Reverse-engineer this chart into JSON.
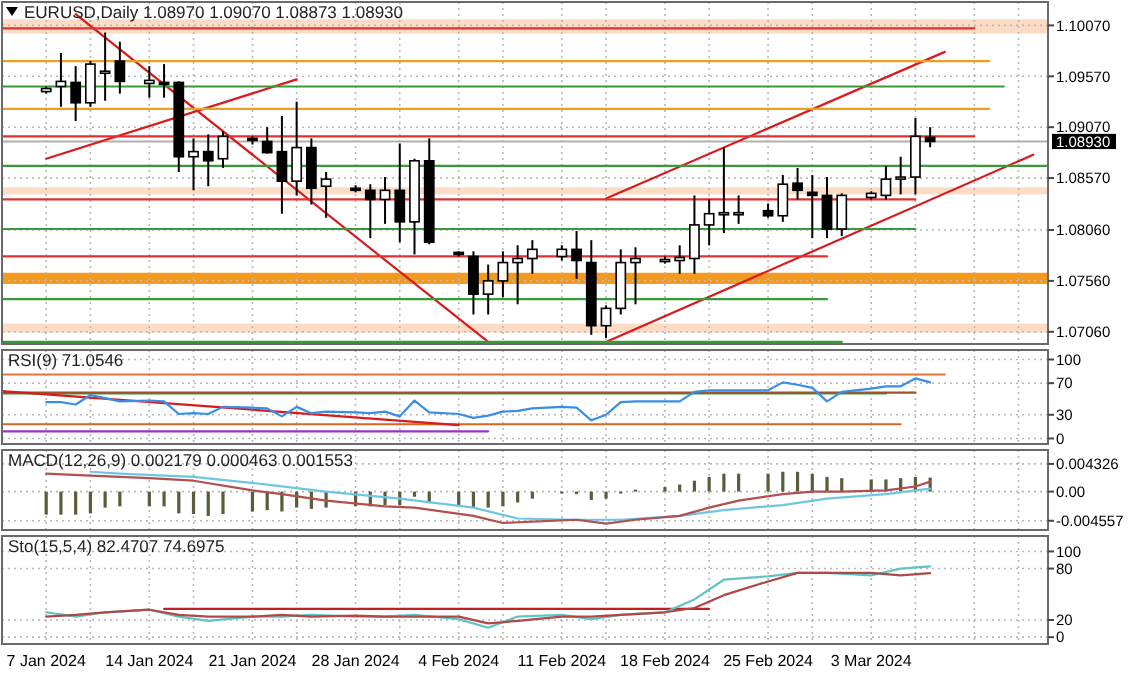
{
  "chart_data": [
    {
      "type": "candlestick",
      "title": "EURUSD,Daily  1.08970 1.09070 1.08873 1.08930",
      "x": [
        "2024-01-07",
        "2024-01-08",
        "2024-01-09",
        "2024-01-10",
        "2024-01-11",
        "2024-01-12",
        "2024-01-14",
        "2024-01-15",
        "2024-01-16",
        "2024-01-17",
        "2024-01-18",
        "2024-01-19",
        "2024-01-21",
        "2024-01-22",
        "2024-01-23",
        "2024-01-24",
        "2024-01-25",
        "2024-01-26",
        "2024-01-28",
        "2024-01-29",
        "2024-01-30",
        "2024-01-31",
        "2024-02-01",
        "2024-02-02",
        "2024-02-04",
        "2024-02-05",
        "2024-02-06",
        "2024-02-07",
        "2024-02-08",
        "2024-02-09",
        "2024-02-11",
        "2024-02-12",
        "2024-02-13",
        "2024-02-14",
        "2024-02-15",
        "2024-02-16",
        "2024-02-18",
        "2024-02-19",
        "2024-02-20",
        "2024-02-21",
        "2024-02-22",
        "2024-02-23",
        "2024-02-25",
        "2024-02-26",
        "2024-02-27",
        "2024-02-28",
        "2024-02-29",
        "2024-03-01",
        "2024-03-03",
        "2024-03-04",
        "2024-03-05",
        "2024-03-06",
        "2024-03-07"
      ],
      "ohlc": [
        [
          1.0942,
          1.0947,
          1.094,
          1.0945
        ],
        [
          1.0947,
          1.098,
          1.0927,
          1.0952
        ],
        [
          1.0951,
          1.0967,
          1.0913,
          1.0931
        ],
        [
          1.0931,
          1.0972,
          1.0927,
          1.0969
        ],
        [
          1.096,
          1.1,
          1.0933,
          1.0962
        ],
        [
          1.0972,
          1.0991,
          1.094,
          1.0952
        ],
        [
          1.095,
          1.0967,
          1.0936,
          1.0953
        ],
        [
          1.0951,
          1.0969,
          1.0936,
          1.095
        ],
        [
          1.0951,
          1.0952,
          1.0863,
          1.0878
        ],
        [
          1.0878,
          1.0896,
          1.0845,
          1.0883
        ],
        [
          1.0883,
          1.09,
          1.0849,
          1.0874
        ],
        [
          1.0876,
          1.0903,
          1.0867,
          1.0898
        ],
        [
          1.0896,
          1.0898,
          1.089,
          1.0894
        ],
        [
          1.0893,
          1.0907,
          1.0881,
          1.0882
        ],
        [
          1.0883,
          1.0918,
          1.0822,
          1.0854
        ],
        [
          1.0854,
          1.0932,
          1.084,
          1.0887
        ],
        [
          1.0887,
          1.0896,
          1.0831,
          1.0847
        ],
        [
          1.0849,
          1.0863,
          1.0818,
          1.0856
        ],
        [
          1.0847,
          1.085,
          1.0843,
          1.0845
        ],
        [
          1.0845,
          1.0851,
          1.0798,
          1.0836
        ],
        [
          1.0836,
          1.0858,
          1.0812,
          1.0845
        ],
        [
          1.0845,
          1.0891,
          1.0794,
          1.0814
        ],
        [
          1.0814,
          1.0876,
          1.0782,
          1.0874
        ],
        [
          1.0874,
          1.0896,
          1.0792,
          1.0794
        ],
        [
          1.0784,
          1.0785,
          1.078,
          1.0782
        ],
        [
          1.078,
          1.0785,
          1.0723,
          1.0743
        ],
        [
          1.0743,
          1.0772,
          1.0723,
          1.0756
        ],
        [
          1.0756,
          1.0785,
          1.074,
          1.0774
        ],
        [
          1.0774,
          1.0791,
          1.0733,
          1.0778
        ],
        [
          1.0778,
          1.0796,
          1.0763,
          1.0787
        ],
        [
          1.078,
          1.0791,
          1.0776,
          1.0787
        ],
        [
          1.0787,
          1.0805,
          1.0758,
          1.0776
        ],
        [
          1.0774,
          1.0796,
          1.0703,
          1.0712
        ],
        [
          1.0712,
          1.0732,
          1.07,
          1.0729
        ],
        [
          1.0729,
          1.0787,
          1.0723,
          1.0774
        ],
        [
          1.0774,
          1.0789,
          1.0733,
          1.0778
        ],
        [
          1.0775,
          1.078,
          1.0773,
          1.0777
        ],
        [
          1.0776,
          1.0791,
          1.0763,
          1.0779
        ],
        [
          1.0778,
          1.084,
          1.0763,
          1.0811
        ],
        [
          1.0811,
          1.0836,
          1.0791,
          1.0822
        ],
        [
          1.0821,
          1.0887,
          1.0803,
          1.0823
        ],
        [
          1.0821,
          1.084,
          1.0812,
          1.0823
        ],
        [
          1.0825,
          1.0832,
          1.0818,
          1.082
        ],
        [
          1.082,
          1.086,
          1.0814,
          1.0851
        ],
        [
          1.0852,
          1.0867,
          1.0836,
          1.0845
        ],
        [
          1.0843,
          1.086,
          1.0798,
          1.084
        ],
        [
          1.084,
          1.0858,
          1.0798,
          1.0807
        ],
        [
          1.0807,
          1.0842,
          1.08,
          1.084
        ],
        [
          1.0838,
          1.0844,
          1.0836,
          1.0842
        ],
        [
          1.084,
          1.0869,
          1.0836,
          1.0856
        ],
        [
          1.0856,
          1.0878,
          1.0841,
          1.0858
        ],
        [
          1.0858,
          1.0916,
          1.0841,
          1.0898
        ],
        [
          1.0897,
          1.0907,
          1.08873,
          1.0893
        ]
      ],
      "series": [
        {
          "type": "line",
          "color": "#d81c1c",
          "x": [
            "2024-01-09",
            "2024-02-06"
          ],
          "values": [
            1.1018,
            1.0696
          ]
        },
        {
          "type": "line",
          "color": "#d81c1c",
          "x": [
            "2024-01-07",
            "2024-01-24"
          ],
          "values": [
            1.0876,
            1.0954
          ]
        },
        {
          "type": "line",
          "color": "#d81c1c",
          "x": [
            "2024-02-14",
            "2024-03-08"
          ],
          "values": [
            1.0837,
            1.0981
          ]
        },
        {
          "type": "line",
          "color": "#d81c1c",
          "x": [
            "2024-02-14",
            "2024-03-14"
          ],
          "values": [
            1.0696,
            1.088
          ]
        },
        {
          "type": "line",
          "color": "#e03030",
          "x": [
            "2024-01-04",
            "2024-03-10"
          ],
          "values": [
            1.1004,
            1.1004
          ]
        },
        {
          "type": "line",
          "color": "#f0a020",
          "x": [
            "2024-01-04",
            "2024-03-11"
          ],
          "values": [
            1.0972,
            1.0972
          ]
        },
        {
          "type": "line",
          "color": "#3a9a3a",
          "x": [
            "2024-01-04",
            "2024-03-12"
          ],
          "values": [
            1.0947,
            1.0947
          ]
        },
        {
          "type": "line",
          "color": "#f0a020",
          "x": [
            "2024-01-04",
            "2024-03-11"
          ],
          "values": [
            1.0925,
            1.0925
          ]
        },
        {
          "type": "line",
          "color": "#e03030",
          "x": [
            "2024-01-04",
            "2024-03-10"
          ],
          "values": [
            1.0898,
            1.0898
          ]
        },
        {
          "type": "line",
          "color": "#3a9a3a",
          "x": [
            "2024-01-04",
            "2024-03-15"
          ],
          "values": [
            1.0869,
            1.0869
          ]
        },
        {
          "type": "line",
          "color": "#e03030",
          "x": [
            "2024-01-04",
            "2024-03-06"
          ],
          "values": [
            1.0836,
            1.0836
          ]
        },
        {
          "type": "line",
          "color": "#3a9a3a",
          "x": [
            "2024-01-04",
            "2024-03-06"
          ],
          "values": [
            1.0807,
            1.0807
          ]
        },
        {
          "type": "line",
          "color": "#e03030",
          "x": [
            "2024-01-04",
            "2024-02-29"
          ],
          "values": [
            1.078,
            1.078
          ]
        },
        {
          "type": "line",
          "color": "#3a9a3a",
          "x": [
            "2024-01-04",
            "2024-02-29"
          ],
          "values": [
            1.0738,
            1.0738
          ]
        },
        {
          "type": "line",
          "color": "#3a9a3a",
          "x": [
            "2024-01-04",
            "2024-03-01"
          ],
          "values": [
            1.0696,
            1.0696
          ]
        }
      ],
      "bands": [
        {
          "axis": "y",
          "from": 1.0999,
          "to": 1.1013,
          "color": "#fcdcc4"
        },
        {
          "axis": "y",
          "from": 1.0841,
          "to": 1.0848,
          "color": "#fcdcc4"
        },
        {
          "axis": "y",
          "from": 1.0753,
          "to": 1.0764,
          "color": "#f39a1e"
        },
        {
          "axis": "y",
          "from": 1.0705,
          "to": 1.0714,
          "color": "#fcdcc4"
        }
      ],
      "ref_lines": [
        {
          "axis": "y",
          "value": 1.0893,
          "label": "1.08930",
          "color": "#b0b0b0"
        }
      ],
      "xlim": [
        "2024-01-04",
        "2024-03-15"
      ],
      "ylim": [
        1.0694,
        1.103
      ],
      "yticks": [
        {
          "value": 1.1007,
          "label": "1.10070"
        },
        {
          "value": 1.0957,
          "label": "1.09570"
        },
        {
          "value": 1.0907,
          "label": "1.09070"
        },
        {
          "value": 1.0857,
          "label": "1.08570"
        },
        {
          "value": 1.0806,
          "label": "1.08060"
        },
        {
          "value": 1.0756,
          "label": "1.07560"
        },
        {
          "value": 1.0706,
          "label": "1.07060"
        }
      ],
      "xticks": [
        {
          "value": "2024-01-07",
          "label": null
        },
        {
          "value": "2024-01-10",
          "label": null
        },
        {
          "value": "2024-01-14",
          "label": null
        },
        {
          "value": "2024-01-17",
          "label": null
        },
        {
          "value": "2024-01-21",
          "label": null
        },
        {
          "value": "2024-01-24",
          "label": null
        },
        {
          "value": "2024-01-28",
          "label": null
        },
        {
          "value": "2024-01-31",
          "label": null
        },
        {
          "value": "2024-02-04",
          "label": null
        },
        {
          "value": "2024-02-07",
          "label": null
        },
        {
          "value": "2024-02-11",
          "label": null
        },
        {
          "value": "2024-02-14",
          "label": null
        },
        {
          "value": "2024-02-18",
          "label": null
        },
        {
          "value": "2024-02-21",
          "label": null
        },
        {
          "value": "2024-02-25",
          "label": null
        },
        {
          "value": "2024-02-28",
          "label": null
        },
        {
          "value": "2024-03-03",
          "label": null
        },
        {
          "value": "2024-03-06",
          "label": null
        },
        {
          "value": "2024-03-10",
          "label": null
        },
        {
          "value": "2024-03-13",
          "label": null
        }
      ],
      "tick_labels": "y",
      "grid": true
    },
    {
      "type": "line",
      "title": "RSI(9) 71.0546",
      "x": [
        "2024-01-07",
        "2024-01-08",
        "2024-01-09",
        "2024-01-10",
        "2024-01-11",
        "2024-01-12",
        "2024-01-14",
        "2024-01-15",
        "2024-01-16",
        "2024-01-17",
        "2024-01-18",
        "2024-01-19",
        "2024-01-21",
        "2024-01-22",
        "2024-01-23",
        "2024-01-24",
        "2024-01-25",
        "2024-01-26",
        "2024-01-28",
        "2024-01-29",
        "2024-01-30",
        "2024-01-31",
        "2024-02-01",
        "2024-02-02",
        "2024-02-04",
        "2024-02-05",
        "2024-02-06",
        "2024-02-07",
        "2024-02-08",
        "2024-02-09",
        "2024-02-11",
        "2024-02-12",
        "2024-02-13",
        "2024-02-14",
        "2024-02-15",
        "2024-02-16",
        "2024-02-18",
        "2024-02-19",
        "2024-02-20",
        "2024-02-21",
        "2024-02-22",
        "2024-02-23",
        "2024-02-25",
        "2024-02-26",
        "2024-02-27",
        "2024-02-28",
        "2024-02-29",
        "2024-03-01",
        "2024-03-03",
        "2024-03-04",
        "2024-03-05",
        "2024-03-06",
        "2024-03-07"
      ],
      "series": [
        {
          "color": "#e8743b",
          "x": [
            "2024-01-04",
            "2024-03-08"
          ],
          "values": [
            81,
            81
          ]
        },
        {
          "color": "#3a9a3a",
          "x": [
            "2024-01-04",
            "2024-03-04"
          ],
          "values": [
            57,
            57
          ]
        },
        {
          "color": "#a0522d",
          "x": [
            "2024-01-04",
            "2024-03-06"
          ],
          "values": [
            58,
            58
          ]
        },
        {
          "color": "#d2691e",
          "x": [
            "2024-01-04",
            "2024-03-05"
          ],
          "values": [
            18,
            18
          ]
        },
        {
          "color": "#9932cc",
          "x": [
            "2024-01-04",
            "2024-02-06"
          ],
          "values": [
            9,
            9
          ]
        },
        {
          "color": "#d81c1c",
          "x": [
            "2024-01-04",
            "2024-02-04"
          ],
          "values": [
            60,
            17
          ]
        },
        {
          "color": "#3a8ee6",
          "values": [
            46,
            46,
            43,
            55,
            51,
            47,
            48,
            47,
            31,
            32,
            31,
            40,
            39,
            38,
            28,
            40,
            32,
            34,
            33,
            32,
            34,
            28,
            48,
            33,
            31,
            26,
            29,
            34,
            35,
            38,
            40,
            39,
            23,
            30,
            46,
            47,
            47,
            47,
            59,
            61,
            61,
            61,
            61,
            71,
            68,
            64,
            47,
            59,
            63,
            66,
            66,
            76,
            71.0546
          ]
        }
      ],
      "xlim": [
        "2024-01-04",
        "2024-03-15"
      ],
      "ylim": [
        -7,
        112
      ],
      "yticks": [
        0,
        30,
        70,
        100
      ],
      "xticks": [
        {
          "value": "2024-01-07",
          "label": null
        },
        {
          "value": "2024-01-10",
          "label": null
        },
        {
          "value": "2024-01-14",
          "label": null
        },
        {
          "value": "2024-01-17",
          "label": null
        },
        {
          "value": "2024-01-21",
          "label": null
        },
        {
          "value": "2024-01-24",
          "label": null
        },
        {
          "value": "2024-01-28",
          "label": null
        },
        {
          "value": "2024-01-31",
          "label": null
        },
        {
          "value": "2024-02-04",
          "label": null
        },
        {
          "value": "2024-02-07",
          "label": null
        },
        {
          "value": "2024-02-11",
          "label": null
        },
        {
          "value": "2024-02-14",
          "label": null
        },
        {
          "value": "2024-02-18",
          "label": null
        },
        {
          "value": "2024-02-21",
          "label": null
        },
        {
          "value": "2024-02-25",
          "label": null
        },
        {
          "value": "2024-02-28",
          "label": null
        },
        {
          "value": "2024-03-03",
          "label": null
        },
        {
          "value": "2024-03-06",
          "label": null
        },
        {
          "value": "2024-03-10",
          "label": null
        },
        {
          "value": "2024-03-13",
          "label": null
        }
      ],
      "tick_labels": "y",
      "grid": true
    },
    {
      "type": "bar",
      "title": "MACD(12,26,9) 0.002179 0.000463 0.001553",
      "x": [
        "2024-01-07",
        "2024-01-08",
        "2024-01-09",
        "2024-01-10",
        "2024-01-11",
        "2024-01-12",
        "2024-01-14",
        "2024-01-15",
        "2024-01-16",
        "2024-01-17",
        "2024-01-18",
        "2024-01-19",
        "2024-01-21",
        "2024-01-22",
        "2024-01-23",
        "2024-01-24",
        "2024-01-25",
        "2024-01-26",
        "2024-01-28",
        "2024-01-29",
        "2024-01-30",
        "2024-01-31",
        "2024-02-01",
        "2024-02-02",
        "2024-02-04",
        "2024-02-05",
        "2024-02-06",
        "2024-02-07",
        "2024-02-08",
        "2024-02-09",
        "2024-02-11",
        "2024-02-12",
        "2024-02-13",
        "2024-02-14",
        "2024-02-15",
        "2024-02-16",
        "2024-02-18",
        "2024-02-19",
        "2024-02-20",
        "2024-02-21",
        "2024-02-22",
        "2024-02-23",
        "2024-02-25",
        "2024-02-26",
        "2024-02-27",
        "2024-02-28",
        "2024-02-29",
        "2024-03-01",
        "2024-03-03",
        "2024-03-04",
        "2024-03-05",
        "2024-03-06",
        "2024-03-07"
      ],
      "series": [
        {
          "type": "bar",
          "color": "#5c5c3a",
          "values": [
            -0.0036,
            -0.0036,
            -0.0036,
            -0.0034,
            -0.0025,
            -0.0023,
            -0.0023,
            -0.0023,
            -0.0034,
            -0.0035,
            -0.0038,
            -0.0035,
            -0.0031,
            -0.0029,
            -0.0031,
            -0.0025,
            -0.0027,
            -0.0025,
            -0.0023,
            -0.0023,
            -0.0021,
            -0.0021,
            -0.0008,
            -0.0018,
            -0.0023,
            -0.0025,
            -0.0025,
            -0.0023,
            -0.0017,
            -0.0011,
            -0.0003,
            -0.0004,
            -0.0013,
            -0.0011,
            -0.0003,
            0.0003,
            0.0007,
            0.0011,
            0.0017,
            0.0023,
            0.0028,
            0.0028,
            0.0028,
            0.0031,
            0.0031,
            0.0028,
            0.0023,
            0.0021,
            0.0019,
            0.0019,
            0.0021,
            0.0023,
            0.002179
          ]
        },
        {
          "type": "line",
          "color": "#6fc6e0",
          "x": [
            "2024-01-10",
            "2024-01-12",
            "2024-01-17",
            "2024-01-22",
            "2024-01-26",
            "2024-01-31",
            "2024-02-05",
            "2024-02-08",
            "2024-02-12",
            "2024-02-15",
            "2024-02-19",
            "2024-02-22",
            "2024-02-26",
            "2024-02-29",
            "2024-03-04",
            "2024-03-07"
          ],
          "values": [
            0.0031,
            0.0028,
            0.0023,
            0.0011,
            0,
            -0.0011,
            -0.0025,
            -0.0042,
            -0.0044,
            -0.0044,
            -0.0038,
            -0.0029,
            -0.0021,
            -0.0011,
            -0.0004,
            0.000463
          ]
        },
        {
          "type": "line",
          "color": "#b05050",
          "x": [
            "2024-01-07",
            "2024-01-10",
            "2024-01-14",
            "2024-01-17",
            "2024-01-21",
            "2024-01-23",
            "2024-01-26",
            "2024-01-30",
            "2024-02-01",
            "2024-02-05",
            "2024-02-07",
            "2024-02-09",
            "2024-02-12",
            "2024-02-14",
            "2024-02-16",
            "2024-02-19",
            "2024-02-21",
            "2024-02-23",
            "2024-02-26",
            "2024-02-28",
            "2024-03-01",
            "2024-03-04",
            "2024-03-06",
            "2024-03-07"
          ],
          "values": [
            0.0028,
            0.0025,
            0.0021,
            0.0017,
            0.0002,
            -0.0004,
            -0.0014,
            -0.0023,
            -0.0025,
            -0.0038,
            -0.0049,
            -0.0047,
            -0.0044,
            -0.005,
            -0.0044,
            -0.0038,
            -0.0025,
            -0.0014,
            -0.0004,
            0,
            0,
            0.0002,
            0.0008,
            0.001553
          ]
        }
      ],
      "xlim": [
        "2024-01-04",
        "2024-03-15"
      ],
      "ylim": [
        -0.006,
        0.0065
      ],
      "yticks": [
        {
          "value": 0.004326,
          "label": "0.004326"
        },
        {
          "value": 0,
          "label": "0.00"
        },
        {
          "value": -0.004557,
          "label": "-0.004557"
        }
      ],
      "xticks": [
        {
          "value": "2024-01-07",
          "label": null
        },
        {
          "value": "2024-01-10",
          "label": null
        },
        {
          "value": "2024-01-14",
          "label": null
        },
        {
          "value": "2024-01-17",
          "label": null
        },
        {
          "value": "2024-01-21",
          "label": null
        },
        {
          "value": "2024-01-24",
          "label": null
        },
        {
          "value": "2024-01-28",
          "label": null
        },
        {
          "value": "2024-01-31",
          "label": null
        },
        {
          "value": "2024-02-04",
          "label": null
        },
        {
          "value": "2024-02-07",
          "label": null
        },
        {
          "value": "2024-02-11",
          "label": null
        },
        {
          "value": "2024-02-14",
          "label": null
        },
        {
          "value": "2024-02-18",
          "label": null
        },
        {
          "value": "2024-02-21",
          "label": null
        },
        {
          "value": "2024-02-25",
          "label": null
        },
        {
          "value": "2024-02-28",
          "label": null
        },
        {
          "value": "2024-03-03",
          "label": null
        },
        {
          "value": "2024-03-06",
          "label": null
        },
        {
          "value": "2024-03-10",
          "label": null
        },
        {
          "value": "2024-03-13",
          "label": null
        }
      ],
      "tick_labels": "y",
      "grid": true
    },
    {
      "type": "line",
      "title": "Sto(15,5,4) 82.4707 74.6975",
      "x": [
        "2024-01-07",
        "2024-01-09",
        "2024-01-11",
        "2024-01-14",
        "2024-01-16",
        "2024-01-18",
        "2024-01-21",
        "2024-01-23",
        "2024-01-25",
        "2024-01-28",
        "2024-01-30",
        "2024-02-01",
        "2024-02-04",
        "2024-02-06",
        "2024-02-08",
        "2024-02-11",
        "2024-02-13",
        "2024-02-15",
        "2024-02-18",
        "2024-02-20",
        "2024-02-22",
        "2024-02-25",
        "2024-02-27",
        "2024-02-29",
        "2024-03-03",
        "2024-03-05",
        "2024-03-07"
      ],
      "series": [
        {
          "color": "#c02020",
          "x": [
            "2024-01-15",
            "2024-02-21"
          ],
          "values": [
            33,
            33
          ]
        },
        {
          "color": "#5fc4c4",
          "values": [
            29,
            24,
            29,
            32,
            24,
            19,
            24,
            24,
            26,
            24,
            24,
            26,
            21,
            11,
            24,
            26,
            21,
            26,
            29,
            44,
            67,
            71,
            75,
            75,
            72,
            80,
            82.4707
          ]
        },
        {
          "color": "#b04848",
          "values": [
            24,
            26,
            29,
            32,
            26,
            24,
            24,
            26,
            24,
            25,
            24,
            24,
            24,
            16,
            19,
            24,
            24,
            26,
            29,
            34,
            49,
            65,
            75,
            75,
            75,
            72,
            74.6975
          ]
        }
      ],
      "xlim": [
        "2024-01-04",
        "2024-03-15"
      ],
      "ylim": [
        -8,
        118
      ],
      "yticks": [
        0,
        20,
        80,
        100
      ],
      "xticks": [
        {
          "value": "2024-01-07",
          "label": "7 Jan 2024"
        },
        {
          "value": "2024-01-10",
          "label": null
        },
        {
          "value": "2024-01-14",
          "label": "14 Jan 2024"
        },
        {
          "value": "2024-01-17",
          "label": null
        },
        {
          "value": "2024-01-21",
          "label": "21 Jan 2024"
        },
        {
          "value": "2024-01-24",
          "label": null
        },
        {
          "value": "2024-01-28",
          "label": "28 Jan 2024"
        },
        {
          "value": "2024-01-31",
          "label": null
        },
        {
          "value": "2024-02-04",
          "label": "4 Feb 2024"
        },
        {
          "value": "2024-02-07",
          "label": null
        },
        {
          "value": "2024-02-11",
          "label": "11 Feb 2024"
        },
        {
          "value": "2024-02-14",
          "label": null
        },
        {
          "value": "2024-02-18",
          "label": "18 Feb 2024"
        },
        {
          "value": "2024-02-21",
          "label": null
        },
        {
          "value": "2024-02-25",
          "label": "25 Feb 2024"
        },
        {
          "value": "2024-02-28",
          "label": null
        },
        {
          "value": "2024-03-03",
          "label": "3 Mar 2024"
        },
        {
          "value": "2024-03-06",
          "label": null
        },
        {
          "value": "2024-03-10",
          "label": null
        },
        {
          "value": "2024-03-13",
          "label": null
        }
      ],
      "grid": true
    }
  ]
}
